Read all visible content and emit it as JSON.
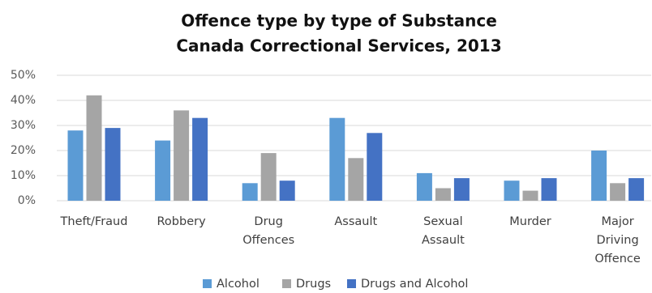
{
  "chart_data": {
    "type": "bar",
    "title": [
      "Offence type by type of Substance",
      "Canada Correctional Services, 2013"
    ],
    "xlabel": "",
    "ylabel": "",
    "categories": [
      [
        "Theft/Fraud"
      ],
      [
        "Robbery"
      ],
      [
        "Drug",
        "Offences"
      ],
      [
        "Assault"
      ],
      [
        "Sexual",
        "Assault"
      ],
      [
        "Murder"
      ],
      [
        "Major",
        "Driving",
        "Offence"
      ]
    ],
    "series": [
      {
        "name": "Alcohol",
        "color": "#5b9bd5",
        "values": [
          28,
          24,
          7,
          33,
          11,
          8,
          20
        ]
      },
      {
        "name": "Drugs",
        "color": "#a5a5a5",
        "values": [
          42,
          36,
          19,
          17,
          5,
          4,
          7
        ]
      },
      {
        "name": "Drugs and Alcohol",
        "color": "#4472c4",
        "values": [
          29,
          33,
          8,
          27,
          9,
          9,
          9
        ]
      }
    ],
    "ylim": [
      0,
      50
    ],
    "yticks": [
      "0%",
      "10%",
      "20%",
      "30%",
      "40%",
      "50%"
    ],
    "grid": true,
    "legend_position": "bottom"
  }
}
